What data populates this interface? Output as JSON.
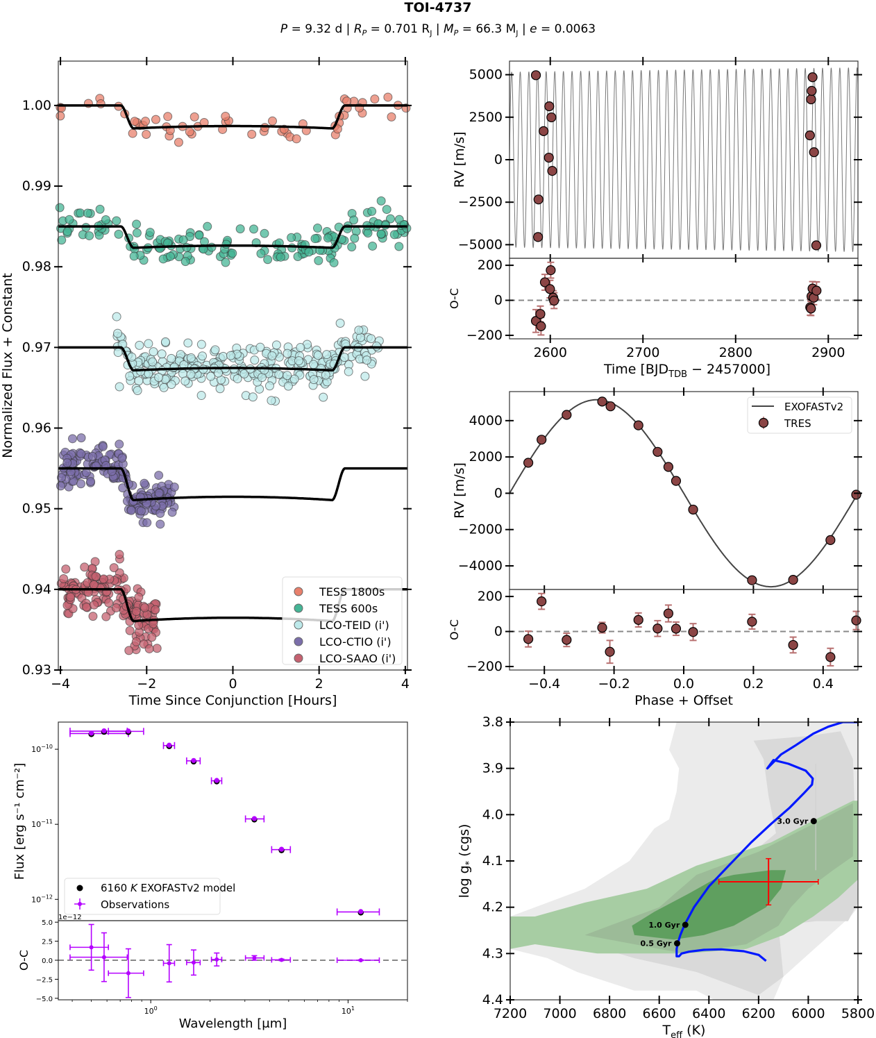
{
  "figure": {
    "title": "TOI-4737",
    "subtitle": {
      "P_label": "P",
      "P_value": "= 9.32 d",
      "R_label": "R",
      "R_sub": "P",
      "R_value": "= 0.701 R",
      "R_unit_sub": "J",
      "M_label": "M",
      "M_sub": "P",
      "M_value": "= 66.3 M",
      "M_unit_sub": "J",
      "e_label": "e",
      "e_value": "= 0.0063",
      "sep": "|"
    }
  },
  "colors": {
    "tess1800": "#e8806c",
    "tess600": "#45b596",
    "teid": "#bde9ea",
    "ctio": "#7b6eaa",
    "saao": "#c56170",
    "rv_point": "#8b4545",
    "rv_err": "#b87070",
    "sed_point": "#b400ff",
    "track": "#0018ff",
    "error_cross": "#ff0000",
    "green_dark": "#5f9f5f",
    "green_mid": "#9cbb98",
    "green_light": "#a7cda3",
    "grey_dark": "#d9d9d9",
    "grey_light": "#ebebeb"
  },
  "chart_data": [
    {
      "id": "transits",
      "type": "scatter",
      "xlabel": "Time Since Conjunction [Hours]",
      "ylabel": "Normalized Flux + Constant",
      "xlim": [
        -4.05,
        4.05
      ],
      "ylim": [
        0.93,
        1.0055
      ],
      "xticks": [
        -4,
        -2,
        0,
        2,
        4
      ],
      "xtick_labels": [
        "−4",
        "−2",
        "0",
        "2",
        "4"
      ],
      "yticks": [
        0.93,
        0.94,
        0.95,
        0.96,
        0.97,
        0.98,
        0.99,
        1.0
      ],
      "ytick_labels": [
        "0.93",
        "0.94",
        "0.95",
        "0.96",
        "0.97",
        "0.98",
        "0.99",
        "1.00"
      ],
      "legend_position": "lower-right",
      "series": [
        {
          "name": "TESS 1800s",
          "color_key": "tess1800",
          "offset": 1.0,
          "depth": 0.0029,
          "x_range": [
            -4.05,
            4.05
          ],
          "n_points": 60,
          "scatter": 0.0008
        },
        {
          "name": "TESS 600s",
          "color_key": "tess600",
          "offset": 0.985,
          "depth": 0.0027,
          "x_range": [
            -4.05,
            4.05
          ],
          "n_points": 170,
          "scatter": 0.0011
        },
        {
          "name": "LCO-TEID (i')",
          "color_key": "teid",
          "offset": 0.97,
          "depth": 0.0029,
          "x_range": [
            -2.7,
            3.4
          ],
          "n_points": 300,
          "scatter": 0.0014
        },
        {
          "name": "LCO-CTIO (i')",
          "color_key": "ctio",
          "offset": 0.955,
          "depth": 0.004,
          "x_range": [
            -4.0,
            -1.35
          ],
          "n_points": 190,
          "scatter": 0.0012
        },
        {
          "name": "LCO-SAAO (i')",
          "color_key": "saao",
          "offset": 0.94,
          "depth": 0.004,
          "x_range": [
            -4.0,
            -1.75
          ],
          "n_points": 170,
          "scatter": 0.0017
        }
      ],
      "model": {
        "ingress_start": -2.6,
        "ingress_end": -2.3,
        "egress_start": 2.3,
        "egress_end": 2.6
      }
    },
    {
      "id": "rv_time",
      "type": "scatter",
      "ylabel": "RV [m/s]",
      "xlim": [
        2556,
        2932
      ],
      "ylim": [
        -5800,
        5800
      ],
      "yticks": [
        -5000,
        -2500,
        0,
        2500,
        5000
      ],
      "ytick_labels": [
        "−5000",
        "−2500",
        "0",
        "2500",
        "5000"
      ],
      "model": {
        "period": 9.32,
        "K": 5150,
        "t0": 2583.9
      },
      "points": [
        {
          "t": 2584.5,
          "rv": 4970
        },
        {
          "t": 2586.8,
          "rv": -4550
        },
        {
          "t": 2587.3,
          "rv": -2340
        },
        {
          "t": 2592.8,
          "rv": 1680
        },
        {
          "t": 2598.5,
          "rv": 120
        },
        {
          "t": 2598.9,
          "rv": 3140
        },
        {
          "t": 2601.2,
          "rv": 2490
        },
        {
          "t": 2602.1,
          "rv": -660
        },
        {
          "t": 2880.2,
          "rv": 1430
        },
        {
          "t": 2881.4,
          "rv": 3550
        },
        {
          "t": 2882.1,
          "rv": 4050
        },
        {
          "t": 2883.0,
          "rv": 4850
        },
        {
          "t": 2884.6,
          "rv": 440
        },
        {
          "t": 2887.0,
          "rv": -5040
        }
      ]
    },
    {
      "id": "rv_time_resid",
      "type": "scatter",
      "xlabel": "Time [BJD",
      "xlabel_sub": "TDB",
      "xlabel_tail": " − 2457000]",
      "ylabel": "O-C",
      "xlim": [
        2556,
        2932
      ],
      "ylim": [
        -220,
        240
      ],
      "xticks": [
        2600,
        2700,
        2800,
        2900
      ],
      "xtick_labels": [
        "2600",
        "2700",
        "2800",
        "2900"
      ],
      "yticks": [
        -200,
        0,
        200
      ],
      "ytick_labels": [
        "−200",
        "0",
        "200"
      ],
      "points": [
        {
          "t": 2584.5,
          "oc": -118,
          "err": 65
        },
        {
          "t": 2589.3,
          "oc": -78,
          "err": 45
        },
        {
          "t": 2590.0,
          "oc": -148,
          "err": 50
        },
        {
          "t": 2594.2,
          "oc": 103,
          "err": 45
        },
        {
          "t": 2599.7,
          "oc": 64,
          "err": 50
        },
        {
          "t": 2600.5,
          "oc": 172,
          "err": 45
        },
        {
          "t": 2603.1,
          "oc": 15,
          "err": 40
        },
        {
          "t": 2604.1,
          "oc": -2,
          "err": 45
        },
        {
          "t": 2880.5,
          "oc": -40,
          "err": 45
        },
        {
          "t": 2881.3,
          "oc": -47,
          "err": 40
        },
        {
          "t": 2881.9,
          "oc": 23,
          "err": 45
        },
        {
          "t": 2883.0,
          "oc": 67,
          "err": 40
        },
        {
          "t": 2884.3,
          "oc": 15,
          "err": 40
        },
        {
          "t": 2887.3,
          "oc": 55,
          "err": 50
        }
      ]
    },
    {
      "id": "rv_phase",
      "type": "scatter",
      "ylabel": "RV [m/s]",
      "xlim": [
        -0.5,
        0.5
      ],
      "ylim": [
        -5300,
        5600
      ],
      "yticks": [
        -4000,
        -2000,
        0,
        2000,
        4000
      ],
      "ytick_labels": [
        "−4000",
        "−2000",
        "0",
        "2000",
        "4000"
      ],
      "legend_position": "top-right",
      "legend": [
        "EXOFASTv2",
        "TRES"
      ],
      "model": {
        "K": 5150
      },
      "points": [
        {
          "phase": -0.446,
          "rv": 1680
        },
        {
          "phase": -0.408,
          "rv": 2950
        },
        {
          "phase": -0.336,
          "rv": 4320
        },
        {
          "phase": -0.234,
          "rv": 5050
        },
        {
          "phase": -0.21,
          "rv": 4790
        },
        {
          "phase": -0.13,
          "rv": 3740
        },
        {
          "phase": -0.075,
          "rv": 2280
        },
        {
          "phase": -0.044,
          "rv": 1450
        },
        {
          "phase": -0.022,
          "rv": 680
        },
        {
          "phase": 0.027,
          "rv": -900
        },
        {
          "phase": 0.196,
          "rv": -4790
        },
        {
          "phase": 0.314,
          "rv": -4770
        },
        {
          "phase": 0.421,
          "rv": -2580
        },
        {
          "phase": 0.495,
          "rv": -80
        }
      ]
    },
    {
      "id": "rv_phase_resid",
      "type": "scatter",
      "xlabel": "Phase + Offset",
      "ylabel": "O-C",
      "xlim": [
        -0.5,
        0.5
      ],
      "ylim": [
        -220,
        240
      ],
      "xticks": [
        -0.4,
        -0.2,
        0.0,
        0.2,
        0.4
      ],
      "xtick_labels": [
        "−0.4",
        "−0.2",
        "0.0",
        "0.2",
        "0.4"
      ],
      "yticks": [
        -200,
        0,
        200
      ],
      "ytick_labels": [
        "−200",
        "0",
        "200"
      ],
      "points": [
        {
          "phase": -0.446,
          "oc": -43,
          "err": 45
        },
        {
          "phase": -0.408,
          "oc": 172,
          "err": 45
        },
        {
          "phase": -0.336,
          "oc": -48,
          "err": 38
        },
        {
          "phase": -0.234,
          "oc": 22,
          "err": 30
        },
        {
          "phase": -0.212,
          "oc": -116,
          "err": 65
        },
        {
          "phase": -0.13,
          "oc": 66,
          "err": 40
        },
        {
          "phase": -0.075,
          "oc": 17,
          "err": 45
        },
        {
          "phase": -0.044,
          "oc": 103,
          "err": 48
        },
        {
          "phase": -0.022,
          "oc": 16,
          "err": 38
        },
        {
          "phase": 0.027,
          "oc": -3,
          "err": 48
        },
        {
          "phase": 0.196,
          "oc": 56,
          "err": 42
        },
        {
          "phase": 0.314,
          "oc": -77,
          "err": 45
        },
        {
          "phase": 0.421,
          "oc": -146,
          "err": 50
        },
        {
          "phase": 0.495,
          "oc": 63,
          "err": 52
        }
      ]
    },
    {
      "id": "sed",
      "type": "scatter",
      "ylabel": "Flux [erg s⁻¹ cm⁻²]",
      "xlim": [
        0.34,
        20
      ],
      "ylim": [
        5.2e-13,
        2.3e-10
      ],
      "yscale": "log",
      "xscale": "log",
      "yticks": [
        1e-12,
        1e-11,
        1e-10
      ],
      "ytick_labels": [
        "10",
        "10",
        "10"
      ],
      "ytick_exps": [
        "−12",
        "−11",
        "−10"
      ],
      "legend_position": "lower-left",
      "legend": [
        "6160 K EXOFASTv2 model",
        "Observations"
      ],
      "legend_temp": "6160",
      "legend_K": "K",
      "legend_model": "EXOFASTv2 model",
      "points": [
        {
          "wl": 0.5,
          "flux": 1.62e-10,
          "xerr_lo": 0.11,
          "xerr_hi": 0.27
        },
        {
          "wl": 0.58,
          "flux": 1.74e-10,
          "xerr_lo": 0.19,
          "xerr_hi": 0.18
        },
        {
          "wl": 0.77,
          "flux": 1.73e-10,
          "xerr_lo": 0.16,
          "xerr_hi": 0.15
        },
        {
          "wl": 1.24,
          "flux": 1.12e-10,
          "xerr_lo": 0.08,
          "xerr_hi": 0.08
        },
        {
          "wl": 1.65,
          "flux": 7e-11,
          "xerr_lo": 0.13,
          "xerr_hi": 0.13
        },
        {
          "wl": 2.16,
          "flux": 3.8e-11,
          "xerr_lo": 0.13,
          "xerr_hi": 0.13
        },
        {
          "wl": 3.35,
          "flux": 1.18e-11,
          "xerr_lo": 0.33,
          "xerr_hi": 0.4
        },
        {
          "wl": 4.6,
          "flux": 4.6e-12,
          "xerr_lo": 0.5,
          "xerr_hi": 0.5
        },
        {
          "wl": 11.6,
          "flux": 6.8e-13,
          "xerr_lo": 2.8,
          "xerr_hi": 2.8
        }
      ]
    },
    {
      "id": "sed_resid",
      "type": "scatter",
      "xlabel": "Wavelength [μm]",
      "ylabel": "O-C",
      "offset_label": "1e−12",
      "xlim": [
        0.34,
        20
      ],
      "ylim": [
        -5.2,
        5.2
      ],
      "yticks": [
        -5.0,
        -2.5,
        0.0,
        2.5,
        5.0
      ],
      "ytick_labels": [
        "−5.0",
        "−2.5",
        "0.0",
        "2.5",
        "5.0"
      ],
      "xticks": [
        1,
        10
      ],
      "xtick_labels": [
        "10",
        "10"
      ],
      "xtick_exps": [
        "0",
        "1"
      ],
      "points": [
        {
          "wl": 0.5,
          "oc": 1.7,
          "yerr": 3.0,
          "xerr_lo": 0.11,
          "xerr_hi": 0.11
        },
        {
          "wl": 0.58,
          "oc": 0.4,
          "yerr": 3.2,
          "xerr_lo": 0.19,
          "xerr_hi": 0.18
        },
        {
          "wl": 0.77,
          "oc": -1.7,
          "yerr": 3.2,
          "xerr_lo": 0.16,
          "xerr_hi": 0.15
        },
        {
          "wl": 1.24,
          "oc": -0.4,
          "yerr": 2.45,
          "xerr_lo": 0.08,
          "xerr_hi": 0.08
        },
        {
          "wl": 1.65,
          "oc": -0.3,
          "yerr": 1.65,
          "xerr_lo": 0.13,
          "xerr_hi": 0.13
        },
        {
          "wl": 2.16,
          "oc": 0.1,
          "yerr": 0.85,
          "xerr_lo": 0.13,
          "xerr_hi": 0.13
        },
        {
          "wl": 3.35,
          "oc": 0.3,
          "yerr": 0.3,
          "xerr_lo": 0.33,
          "xerr_hi": 0.4
        },
        {
          "wl": 4.6,
          "oc": 0.05,
          "yerr": 0.1,
          "xerr_lo": 0.5,
          "xerr_hi": 0.5
        },
        {
          "wl": 11.6,
          "oc": 0.0,
          "yerr": 0.05,
          "xerr_lo": 2.8,
          "xerr_hi": 2.8
        }
      ]
    },
    {
      "id": "hr",
      "type": "line",
      "xlabel": "T",
      "xlabel_sub": "eff",
      "xlabel_tail": " (K)",
      "ylabel": "log g",
      "ylabel_sub": "*",
      "ylabel_tail": " (cgs)",
      "xlim": [
        7200,
        5800
      ],
      "ylim": [
        4.4,
        3.8
      ],
      "xticks": [
        7200,
        7000,
        6800,
        6600,
        6400,
        6200,
        6000,
        5800
      ],
      "xtick_labels": [
        "7200",
        "7000",
        "6800",
        "6600",
        "6400",
        "6200",
        "6000",
        "5800"
      ],
      "yticks": [
        3.8,
        3.9,
        4.0,
        4.1,
        4.2,
        4.3,
        4.4
      ],
      "ytick_labels": [
        "3.8",
        "3.9",
        "4.0",
        "4.1",
        "4.2",
        "4.3",
        "4.4"
      ],
      "measurement": {
        "teff": 6160,
        "teff_err": 200,
        "logg": 4.145,
        "logg_err": 0.05
      },
      "track": [
        [
          6170,
          4.316
        ],
        [
          6200,
          4.303
        ],
        [
          6260,
          4.295
        ],
        [
          6350,
          4.291
        ],
        [
          6420,
          4.292
        ],
        [
          6480,
          4.296
        ],
        [
          6510,
          4.3
        ],
        [
          6520,
          4.306
        ],
        [
          6530,
          4.306
        ],
        [
          6530,
          4.29
        ],
        [
          6525,
          4.277
        ],
        [
          6515,
          4.26
        ],
        [
          6498,
          4.238
        ],
        [
          6460,
          4.2
        ],
        [
          6400,
          4.155
        ],
        [
          6320,
          4.11
        ],
        [
          6230,
          4.06
        ],
        [
          6150,
          4.02
        ],
        [
          6075,
          3.985
        ],
        [
          6020,
          3.955
        ],
        [
          5985,
          3.935
        ],
        [
          5982,
          3.922
        ],
        [
          6010,
          3.905
        ],
        [
          6080,
          3.89
        ],
        [
          6140,
          3.882
        ],
        [
          6165,
          3.9
        ],
        [
          6110,
          3.87
        ],
        [
          6050,
          3.85
        ],
        [
          5980,
          3.825
        ],
        [
          5920,
          3.81
        ],
        [
          5860,
          3.8
        ],
        [
          5800,
          3.8
        ]
      ],
      "age_markers": [
        {
          "label": "3.0 Gyr",
          "teff": 5978,
          "logg": 4.014
        },
        {
          "label": "1.0 Gyr",
          "teff": 6495,
          "logg": 4.238
        },
        {
          "label": "0.5 Gyr",
          "teff": 6528,
          "logg": 4.278
        }
      ]
    }
  ]
}
